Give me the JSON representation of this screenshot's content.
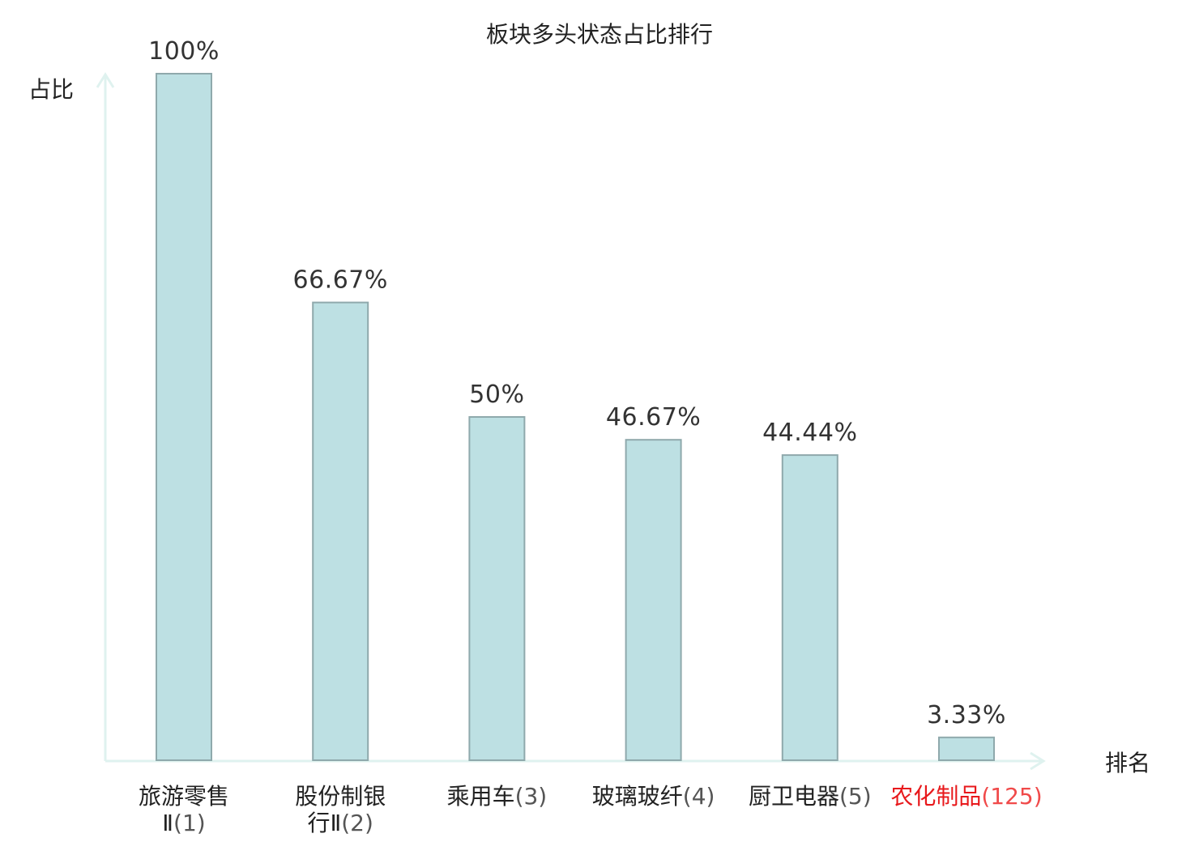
{
  "chart_data": {
    "type": "bar",
    "title": "板块多头状态占比排行",
    "ylabel": "占比",
    "xlabel": "排名",
    "ylim": [
      0,
      100
    ],
    "grid": false,
    "categories": [
      {
        "name": "旅游零售",
        "name_line2": "Ⅱ",
        "rank": "(1)",
        "highlight": false
      },
      {
        "name": "股份制银",
        "name_line2": "行Ⅱ",
        "rank": "(2)",
        "highlight": false
      },
      {
        "name": "乘用车",
        "name_line2": "",
        "rank": "(3)",
        "highlight": false
      },
      {
        "name": "玻璃玻纤",
        "name_line2": "",
        "rank": "(4)",
        "highlight": false
      },
      {
        "name": "厨卫电器",
        "name_line2": "",
        "rank": "(5)",
        "highlight": false
      },
      {
        "name": "农化制品",
        "name_line2": "",
        "rank": "(125)",
        "highlight": true
      }
    ],
    "values": [
      100,
      66.67,
      50,
      46.67,
      44.44,
      3.33
    ],
    "value_labels": [
      "100%",
      "66.67%",
      "50%",
      "46.67%",
      "44.44%",
      "3.33%"
    ]
  },
  "colors": {
    "bar_fill": "#bde0e3",
    "bar_stroke": "#8fa9ac",
    "axis": "#dff2ef",
    "text": "#222222",
    "rank_text": "#555555",
    "highlight_text": "#e8191c",
    "highlight_rank_text": "#f04a4a"
  }
}
